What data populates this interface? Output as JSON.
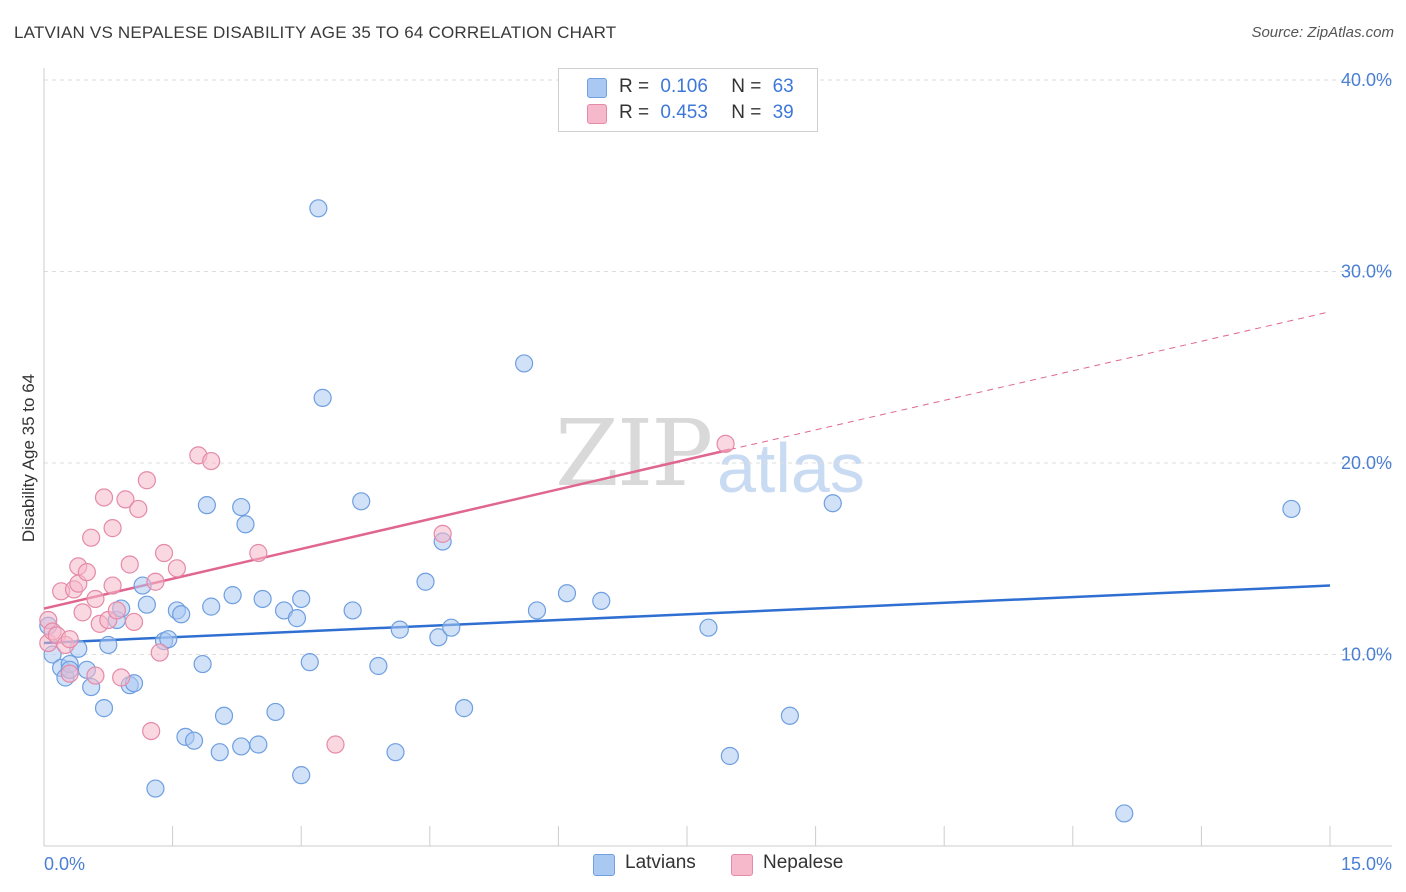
{
  "header": {
    "title": "LATVIAN VS NEPALESE DISABILITY AGE 35 TO 64 CORRELATION CHART",
    "source": "Source: ZipAtlas.com"
  },
  "watermark": {
    "zip": "ZIP",
    "atlas": "atlas"
  },
  "legend": {
    "rows": [
      {
        "r_label": "R =",
        "r_value": "0.106",
        "n_label": "N =",
        "n_value": "63",
        "color": "#a9c8f2"
      },
      {
        "r_label": "R =",
        "r_value": "0.453",
        "n_label": "N =",
        "n_value": "39",
        "color": "#f6b8cb"
      }
    ]
  },
  "bottom_legend": {
    "latvians": "Latvians",
    "nepalese": "Nepalese"
  },
  "colors": {
    "latvian_fill": "#a9c8f2",
    "latvian_stroke": "#6f9fe0",
    "latvian_line": "#2f6fd1",
    "nepalese_fill": "#f6b8cb",
    "nepalese_stroke": "#e58aa8",
    "nepalese_line": "#e06690"
  },
  "chart_data": {
    "type": "scatter",
    "title": "LATVIAN VS NEPALESE DISABILITY AGE 35 TO 64 CORRELATION CHART",
    "xlabel": "",
    "ylabel": "Disability Age 35 to 64",
    "xlim": [
      0,
      15
    ],
    "ylim": [
      0,
      40
    ],
    "x_tick_labels": [
      "0.0%",
      "15.0%"
    ],
    "y_ticks": [
      10,
      20,
      30,
      40
    ],
    "y_tick_labels": [
      "10.0%",
      "20.0%",
      "30.0%",
      "40.0%"
    ],
    "grid": true,
    "series": [
      {
        "name": "Latvians",
        "r": 0.106,
        "n": 63,
        "trend": {
          "x0": 0,
          "y0": 10.6,
          "x1": 15,
          "y1": 13.6
        },
        "points": [
          [
            0.05,
            11.5
          ],
          [
            0.1,
            10.0
          ],
          [
            0.2,
            9.3
          ],
          [
            0.25,
            8.8
          ],
          [
            0.3,
            9.5
          ],
          [
            0.3,
            9.2
          ],
          [
            0.4,
            10.3
          ],
          [
            0.5,
            9.2
          ],
          [
            0.55,
            8.3
          ],
          [
            0.7,
            7.2
          ],
          [
            0.75,
            10.5
          ],
          [
            0.85,
            11.8
          ],
          [
            0.9,
            12.4
          ],
          [
            1.0,
            8.4
          ],
          [
            1.05,
            8.5
          ],
          [
            1.15,
            13.6
          ],
          [
            1.2,
            12.6
          ],
          [
            1.3,
            3.0
          ],
          [
            1.4,
            10.7
          ],
          [
            1.45,
            10.8
          ],
          [
            1.55,
            12.3
          ],
          [
            1.6,
            12.1
          ],
          [
            1.65,
            5.7
          ],
          [
            1.75,
            5.5
          ],
          [
            1.85,
            9.5
          ],
          [
            1.9,
            17.8
          ],
          [
            1.95,
            12.5
          ],
          [
            2.05,
            4.9
          ],
          [
            2.1,
            6.8
          ],
          [
            2.2,
            13.1
          ],
          [
            2.3,
            5.2
          ],
          [
            2.3,
            17.7
          ],
          [
            2.35,
            16.8
          ],
          [
            2.5,
            5.3
          ],
          [
            2.55,
            12.9
          ],
          [
            2.7,
            7.0
          ],
          [
            2.8,
            12.3
          ],
          [
            2.95,
            11.9
          ],
          [
            3.0,
            12.9
          ],
          [
            3.0,
            3.7
          ],
          [
            3.1,
            9.6
          ],
          [
            3.2,
            33.3
          ],
          [
            3.25,
            23.4
          ],
          [
            3.6,
            12.3
          ],
          [
            3.7,
            18.0
          ],
          [
            3.9,
            9.4
          ],
          [
            4.1,
            4.9
          ],
          [
            4.15,
            11.3
          ],
          [
            4.45,
            13.8
          ],
          [
            4.6,
            10.9
          ],
          [
            4.65,
            15.9
          ],
          [
            4.75,
            11.4
          ],
          [
            4.9,
            7.2
          ],
          [
            5.6,
            25.2
          ],
          [
            5.75,
            12.3
          ],
          [
            6.1,
            13.2
          ],
          [
            6.5,
            12.8
          ],
          [
            7.75,
            11.4
          ],
          [
            8.0,
            4.7
          ],
          [
            8.7,
            6.8
          ],
          [
            9.2,
            17.9
          ],
          [
            12.6,
            1.7
          ],
          [
            14.55,
            17.6
          ]
        ]
      },
      {
        "name": "Nepalese",
        "r": 0.453,
        "n": 39,
        "trend": {
          "x0": 0,
          "y0": 12.4,
          "x1": 8.0,
          "y1": 20.7
        },
        "trend_extension": {
          "x0": 8.0,
          "y0": 20.7,
          "x1": 15,
          "y1": 27.9
        },
        "points": [
          [
            0.05,
            10.6
          ],
          [
            0.05,
            11.8
          ],
          [
            0.1,
            11.2
          ],
          [
            0.15,
            11.0
          ],
          [
            0.2,
            13.3
          ],
          [
            0.25,
            10.5
          ],
          [
            0.3,
            10.8
          ],
          [
            0.3,
            9.0
          ],
          [
            0.35,
            13.4
          ],
          [
            0.4,
            14.6
          ],
          [
            0.4,
            13.7
          ],
          [
            0.45,
            12.2
          ],
          [
            0.5,
            14.3
          ],
          [
            0.55,
            16.1
          ],
          [
            0.6,
            8.9
          ],
          [
            0.6,
            12.9
          ],
          [
            0.65,
            11.6
          ],
          [
            0.7,
            18.2
          ],
          [
            0.75,
            11.8
          ],
          [
            0.8,
            16.6
          ],
          [
            0.8,
            13.6
          ],
          [
            0.85,
            12.3
          ],
          [
            0.9,
            8.8
          ],
          [
            0.95,
            18.1
          ],
          [
            1.0,
            14.7
          ],
          [
            1.05,
            11.7
          ],
          [
            1.1,
            17.6
          ],
          [
            1.2,
            19.1
          ],
          [
            1.25,
            6.0
          ],
          [
            1.3,
            13.8
          ],
          [
            1.35,
            10.1
          ],
          [
            1.4,
            15.3
          ],
          [
            1.55,
            14.5
          ],
          [
            1.8,
            20.4
          ],
          [
            1.95,
            20.1
          ],
          [
            2.5,
            15.3
          ],
          [
            3.4,
            5.3
          ],
          [
            4.65,
            16.3
          ],
          [
            7.95,
            21.0
          ]
        ]
      }
    ]
  }
}
